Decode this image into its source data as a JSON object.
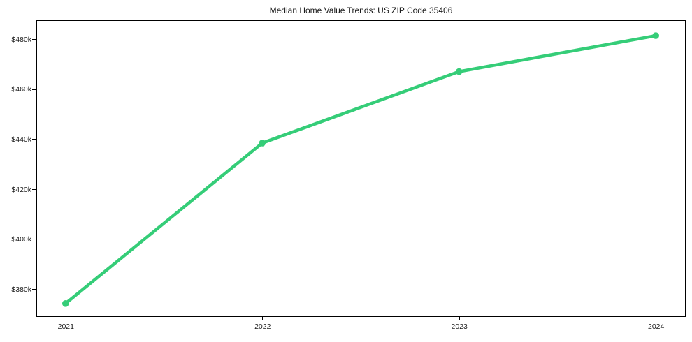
{
  "chart_data": {
    "type": "line",
    "title": "Median Home Value Trends: US ZIP Code 35406",
    "x": [
      2021,
      2022,
      2023,
      2024
    ],
    "values": [
      374.2,
      438.5,
      467.1,
      481.5
    ],
    "value_unit_suffix": "k",
    "xticks": [
      {
        "value": 2021,
        "label": "2021"
      },
      {
        "value": 2022,
        "label": "2022"
      },
      {
        "value": 2023,
        "label": "2023"
      },
      {
        "value": 2024,
        "label": "2024"
      }
    ],
    "yticks": [
      {
        "value": 380,
        "label": "$380k"
      },
      {
        "value": 400,
        "label": "$400k"
      },
      {
        "value": 420,
        "label": "$420k"
      },
      {
        "value": 440,
        "label": "$440k"
      },
      {
        "value": 460,
        "label": "$460k"
      },
      {
        "value": 480,
        "label": "$480k"
      }
    ],
    "xlim": [
      2020.855,
      2024.145
    ],
    "ylim": [
      369.4,
      487.4
    ],
    "grid": false,
    "line_color": "#35cd78",
    "marker_color": "#35cd78",
    "axis_color": "#000000",
    "text_color": "#1a1a1a",
    "background_color": "#ffffff"
  }
}
